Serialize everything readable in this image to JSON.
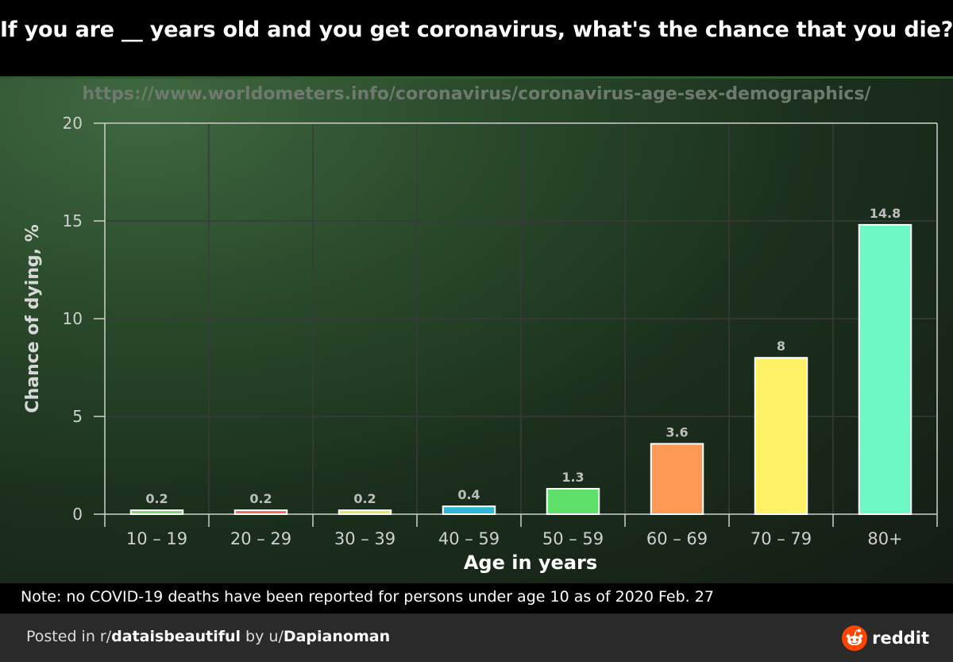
{
  "header": {
    "title": "If you are __ years old and you get coronavirus, what's the chance that you die?"
  },
  "chart_data": {
    "type": "bar",
    "source_url": "https://www.worldometers.info/coronavirus/coronavirus-age-sex-demographics/",
    "categories": [
      "10 – 19",
      "20 – 29",
      "30 – 39",
      "40 – 59",
      "50 – 59",
      "60 – 69",
      "70 – 79",
      "80+"
    ],
    "values": [
      0.2,
      0.2,
      0.2,
      0.4,
      1.3,
      3.6,
      8,
      14.8
    ],
    "value_labels": [
      "0.2",
      "0.2",
      "0.2",
      "0.4",
      "1.3",
      "3.6",
      "8",
      "14.8"
    ],
    "colors": [
      "#7ed36a",
      "#f06a5a",
      "#e5e55a",
      "#2fb8d8",
      "#5fe06a",
      "#ff9955",
      "#fff266",
      "#6ef8c4"
    ],
    "xlabel": "Age in years",
    "ylabel": "Chance of dying, %",
    "ylim": [
      0,
      20
    ],
    "yticks": [
      "0",
      "5",
      "10",
      "15",
      "20"
    ],
    "grid": true
  },
  "note": "Note: no COVID-19 deaths have been reported for persons under age 10 as of 2020 Feb. 27",
  "footer": {
    "prefix": "Posted in r/",
    "subreddit": "dataisbeautiful",
    "by": " by u/",
    "user": "Dapianoman",
    "brand": "reddit",
    "brand_color": "#ff4500"
  }
}
